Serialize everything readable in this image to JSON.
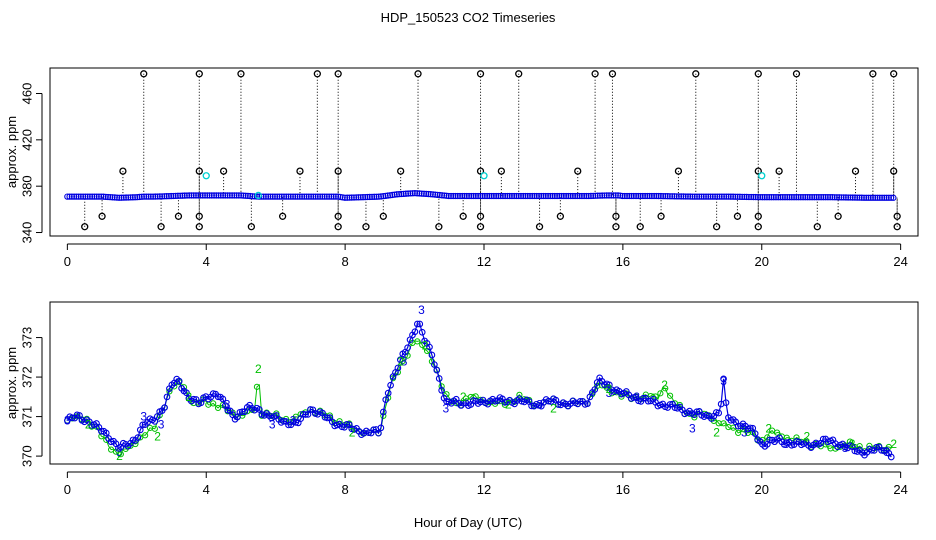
{
  "title": "HDP_150523  CO2 Timeseries",
  "xlabel": "Hour of Day (UTC)",
  "colors": {
    "dark": "#000000",
    "blue": "#0000e0",
    "cyan": "#00d0d0",
    "green": "#00c000"
  },
  "chart_data": [
    {
      "type": "scatter",
      "panel": "top",
      "ylabel": "approx. ppm",
      "xlim": [
        -0.5,
        24.5
      ],
      "ylim": [
        337,
        482
      ],
      "xticks": [
        0,
        4,
        8,
        12,
        16,
        20,
        24
      ],
      "yticks": [
        340,
        380,
        420,
        460
      ],
      "baseline": [
        [
          0.0,
          371
        ],
        [
          0.5,
          371
        ],
        [
          1.0,
          371
        ],
        [
          1.5,
          370
        ],
        [
          2.0,
          370.5
        ],
        [
          2.2,
          371
        ],
        [
          2.5,
          371
        ],
        [
          3.0,
          371.5
        ],
        [
          3.5,
          372
        ],
        [
          3.8,
          372
        ],
        [
          4.0,
          372
        ],
        [
          4.5,
          372
        ],
        [
          5.0,
          372
        ],
        [
          5.5,
          371
        ],
        [
          6.0,
          371
        ],
        [
          7.0,
          371
        ],
        [
          7.8,
          371
        ],
        [
          8.0,
          370
        ],
        [
          8.5,
          370.5
        ],
        [
          9.0,
          371
        ],
        [
          9.5,
          373
        ],
        [
          10.0,
          374
        ],
        [
          10.5,
          373
        ],
        [
          11.0,
          371.5
        ],
        [
          11.5,
          371.5
        ],
        [
          12.0,
          371.5
        ],
        [
          13.0,
          371.5
        ],
        [
          14.0,
          371.5
        ],
        [
          14.5,
          371.5
        ],
        [
          15.0,
          371.5
        ],
        [
          15.5,
          372
        ],
        [
          15.9,
          372
        ],
        [
          16.0,
          371.5
        ],
        [
          17.0,
          371.5
        ],
        [
          18.0,
          371
        ],
        [
          19.0,
          371
        ],
        [
          20.0,
          370.5
        ],
        [
          21.0,
          370.5
        ],
        [
          22.0,
          370.5
        ],
        [
          23.0,
          370
        ],
        [
          23.8,
          370
        ]
      ],
      "spike_hours": [
        2.2,
        3.8,
        5.0,
        7.2,
        7.8,
        10.1,
        11.9,
        13.0,
        15.2,
        15.7,
        18.1,
        19.9,
        21.0,
        23.2,
        23.8
      ],
      "spike_value": 477,
      "mid_markers": [
        [
          1.6,
          393
        ],
        [
          3.8,
          393
        ],
        [
          4.5,
          393
        ],
        [
          6.7,
          393
        ],
        [
          7.8,
          393
        ],
        [
          9.6,
          393
        ],
        [
          11.9,
          393
        ],
        [
          12.5,
          393
        ],
        [
          14.7,
          393
        ],
        [
          17.6,
          393
        ],
        [
          19.9,
          393
        ],
        [
          20.5,
          393
        ],
        [
          22.7,
          393
        ],
        [
          23.8,
          393
        ]
      ],
      "low_markers": [
        [
          0.5,
          345
        ],
        [
          1.0,
          354
        ],
        [
          2.7,
          345
        ],
        [
          3.2,
          354
        ],
        [
          3.8,
          345
        ],
        [
          3.8,
          354
        ],
        [
          5.3,
          345
        ],
        [
          6.2,
          354
        ],
        [
          7.8,
          354
        ],
        [
          7.8,
          345
        ],
        [
          8.6,
          345
        ],
        [
          9.1,
          354
        ],
        [
          10.7,
          345
        ],
        [
          11.4,
          354
        ],
        [
          11.9,
          354
        ],
        [
          11.9,
          345
        ],
        [
          13.6,
          345
        ],
        [
          14.2,
          354
        ],
        [
          15.8,
          354
        ],
        [
          15.8,
          345
        ],
        [
          16.5,
          345
        ],
        [
          17.1,
          354
        ],
        [
          18.7,
          345
        ],
        [
          19.3,
          354
        ],
        [
          19.9,
          354
        ],
        [
          19.9,
          345
        ],
        [
          21.6,
          345
        ],
        [
          22.2,
          354
        ],
        [
          23.9,
          354
        ],
        [
          23.9,
          345
        ]
      ],
      "cyan_markers": [
        [
          4.0,
          389
        ],
        [
          5.5,
          372
        ],
        [
          12.0,
          389
        ],
        [
          20.0,
          389
        ]
      ]
    },
    {
      "type": "line",
      "panel": "bottom",
      "ylabel": "approx. ppm",
      "xlim": [
        -0.5,
        24.5
      ],
      "ylim": [
        369.8,
        373.9
      ],
      "xticks": [
        0,
        4,
        8,
        12,
        16,
        20,
        24
      ],
      "yticks": [
        370,
        371,
        372,
        373
      ],
      "series_blue": [
        [
          0.0,
          370.9
        ],
        [
          0.3,
          371.0
        ],
        [
          0.6,
          370.9
        ],
        [
          0.9,
          370.7
        ],
        [
          1.2,
          370.5
        ],
        [
          1.5,
          370.2
        ],
        [
          1.8,
          370.3
        ],
        [
          2.0,
          370.5
        ],
        [
          2.2,
          370.8
        ],
        [
          2.5,
          370.9
        ],
        [
          2.8,
          371.3
        ],
        [
          3.0,
          371.8
        ],
        [
          3.2,
          371.9
        ],
        [
          3.5,
          371.5
        ],
        [
          3.8,
          371.3
        ],
        [
          4.0,
          371.5
        ],
        [
          4.3,
          371.6
        ],
        [
          4.6,
          371.2
        ],
        [
          4.8,
          371.0
        ],
        [
          5.2,
          371.2
        ],
        [
          5.5,
          371.2
        ],
        [
          5.8,
          371.0
        ],
        [
          6.2,
          370.9
        ],
        [
          6.6,
          370.8
        ],
        [
          7.0,
          371.2
        ],
        [
          7.4,
          371.0
        ],
        [
          7.8,
          370.8
        ],
        [
          8.2,
          370.7
        ],
        [
          8.6,
          370.6
        ],
        [
          9.0,
          370.6
        ],
        [
          9.2,
          371.6
        ],
        [
          9.5,
          372.2
        ],
        [
          9.7,
          372.6
        ],
        [
          9.9,
          373.0
        ],
        [
          10.1,
          373.4
        ],
        [
          10.3,
          372.9
        ],
        [
          10.5,
          372.6
        ],
        [
          10.7,
          372.0
        ],
        [
          10.9,
          371.3
        ],
        [
          11.2,
          371.4
        ],
        [
          11.6,
          371.3
        ],
        [
          12.0,
          371.4
        ],
        [
          12.5,
          371.4
        ],
        [
          13.0,
          371.4
        ],
        [
          13.5,
          371.3
        ],
        [
          14.0,
          371.4
        ],
        [
          14.5,
          371.3
        ],
        [
          15.0,
          371.4
        ],
        [
          15.3,
          371.9
        ],
        [
          15.6,
          371.8
        ],
        [
          15.9,
          371.6
        ],
        [
          16.3,
          371.5
        ],
        [
          16.7,
          371.4
        ],
        [
          17.2,
          371.3
        ],
        [
          17.6,
          371.2
        ],
        [
          18.0,
          371.1
        ],
        [
          18.4,
          371.0
        ],
        [
          18.8,
          371.1
        ],
        [
          18.9,
          371.9
        ],
        [
          19.0,
          371.0
        ],
        [
          19.4,
          370.8
        ],
        [
          19.8,
          370.6
        ],
        [
          20.0,
          370.3
        ],
        [
          20.5,
          370.4
        ],
        [
          21.0,
          370.3
        ],
        [
          21.5,
          370.3
        ],
        [
          22.0,
          370.4
        ],
        [
          22.5,
          370.2
        ],
        [
          23.0,
          370.1
        ],
        [
          23.5,
          370.2
        ],
        [
          23.8,
          370.0
        ]
      ],
      "series_green": [
        [
          0.0,
          370.9
        ],
        [
          0.5,
          371.0
        ],
        [
          1.0,
          370.5
        ],
        [
          1.5,
          370.0
        ],
        [
          2.0,
          370.4
        ],
        [
          2.5,
          370.7
        ],
        [
          3.0,
          371.7
        ],
        [
          3.3,
          371.9
        ],
        [
          3.6,
          371.3
        ],
        [
          4.0,
          371.4
        ],
        [
          4.5,
          371.2
        ],
        [
          5.0,
          371.0
        ],
        [
          5.4,
          371.2
        ],
        [
          5.5,
          372.1
        ],
        [
          5.6,
          371.1
        ],
        [
          6.0,
          371.0
        ],
        [
          6.5,
          370.9
        ],
        [
          7.0,
          371.2
        ],
        [
          7.5,
          371.0
        ],
        [
          8.0,
          370.8
        ],
        [
          8.5,
          370.6
        ],
        [
          9.0,
          370.6
        ],
        [
          9.3,
          371.8
        ],
        [
          9.7,
          372.4
        ],
        [
          10.0,
          373.0
        ],
        [
          10.3,
          372.7
        ],
        [
          10.6,
          372.3
        ],
        [
          10.9,
          371.5
        ],
        [
          11.2,
          371.3
        ],
        [
          11.6,
          371.5
        ],
        [
          12.0,
          371.4
        ],
        [
          12.5,
          371.3
        ],
        [
          13.0,
          371.5
        ],
        [
          13.5,
          371.3
        ],
        [
          14.0,
          371.4
        ],
        [
          14.5,
          371.3
        ],
        [
          15.0,
          371.4
        ],
        [
          15.3,
          371.8
        ],
        [
          15.6,
          371.7
        ],
        [
          16.0,
          371.5
        ],
        [
          16.5,
          371.5
        ],
        [
          17.0,
          371.5
        ],
        [
          17.2,
          371.8
        ],
        [
          17.4,
          371.4
        ],
        [
          18.0,
          371.0
        ],
        [
          18.4,
          371.1
        ],
        [
          18.8,
          370.8
        ],
        [
          19.2,
          370.7
        ],
        [
          19.6,
          370.6
        ],
        [
          20.0,
          370.4
        ],
        [
          20.3,
          370.6
        ],
        [
          21.0,
          370.4
        ],
        [
          21.5,
          370.3
        ],
        [
          22.0,
          370.2
        ],
        [
          22.5,
          370.3
        ],
        [
          23.0,
          370.2
        ],
        [
          23.5,
          370.2
        ],
        [
          23.8,
          370.3
        ]
      ],
      "markers_3": [
        [
          0.0,
          370.9
        ],
        [
          1.5,
          370.1
        ],
        [
          2.2,
          371.0
        ],
        [
          2.7,
          370.8
        ],
        [
          4.6,
          371.3
        ],
        [
          5.9,
          370.8
        ],
        [
          6.5,
          370.9
        ],
        [
          9.7,
          372.4
        ],
        [
          10.2,
          373.7
        ],
        [
          10.9,
          371.2
        ],
        [
          13.6,
          371.3
        ],
        [
          15.6,
          371.6
        ],
        [
          16.4,
          371.5
        ],
        [
          18.0,
          370.7
        ],
        [
          18.9,
          371.9
        ],
        [
          19.5,
          370.6
        ],
        [
          20.7,
          370.3
        ],
        [
          22.4,
          370.2
        ],
        [
          23.6,
          370.1
        ]
      ],
      "markers_2": [
        [
          0.6,
          370.8
        ],
        [
          1.5,
          370.0
        ],
        [
          2.6,
          370.5
        ],
        [
          3.5,
          371.5
        ],
        [
          5.5,
          372.2
        ],
        [
          8.2,
          370.6
        ],
        [
          9.6,
          372.4
        ],
        [
          10.3,
          372.8
        ],
        [
          11.4,
          371.5
        ],
        [
          12.7,
          371.3
        ],
        [
          14.0,
          371.2
        ],
        [
          15.6,
          371.7
        ],
        [
          17.2,
          371.8
        ],
        [
          18.7,
          370.6
        ],
        [
          20.2,
          370.7
        ],
        [
          21.3,
          370.5
        ],
        [
          22.6,
          370.3
        ],
        [
          23.8,
          370.3
        ]
      ]
    }
  ]
}
